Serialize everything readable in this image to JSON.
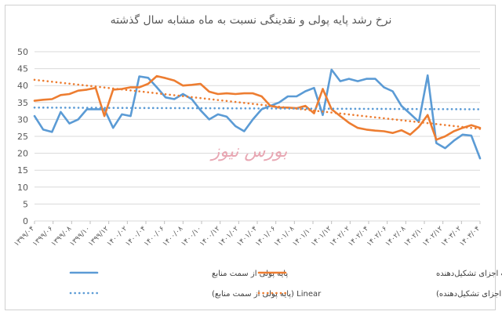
{
  "chart_data": {
    "type": "line",
    "title": "نرخ رشد پایه پولی و نقدینگی نسبت به ماه مشابه سال گذشته",
    "ylim": [
      0,
      50
    ],
    "yticks": [
      0,
      5,
      10,
      15,
      20,
      25,
      30,
      35,
      40,
      45,
      50
    ],
    "grid": true,
    "legend_position": "bottom",
    "x_tick_labels": [
      "۱۳۹۹/۰۴",
      "۱۳۹۹/۰۶",
      "۱۳۹۹/۰۸",
      "۱۳۹۹/۱۰",
      "۱۳۹۹/۱۲",
      "۱۴۰۰/۰۲",
      "۱۴۰۰/۰۴",
      "۱۴۰۰/۰۶",
      "۱۴۰۰/۰۸",
      "۱۴۰۰/۱۰",
      "۱۴۰۰/۱۲",
      "۱۴۰۱/۰۲",
      "۱۴۰۱/۰۴",
      "۱۴۰۱/۰۶",
      "۱۴۰۱/۰۸",
      "۱۴۰۱/۱۰",
      "۱۴۰۱/۱۲",
      "۱۴۰۲/۰۲",
      "۱۴۰۲/۰۴",
      "۱۴۰۲/۰۶",
      "۱۴۰۲/۰۸",
      "۱۴۰۲/۱۰",
      "۱۴۰۲/۱۲",
      "۱۴۰۳/۰۲",
      "۱۴۰۳/۰۴"
    ],
    "series": [
      {
        "name": "پایه پولی از سمت منابع",
        "color": "#5b9bd5",
        "style": "solid",
        "values": [
          31,
          27,
          26.3,
          32.2,
          28.8,
          30,
          33,
          33,
          33,
          27.5,
          31.5,
          31,
          42.7,
          42.3,
          39.5,
          36.5,
          36,
          37.5,
          36,
          32.7,
          30,
          31.5,
          30.8,
          28,
          26.5,
          30,
          33,
          34,
          35,
          36.8,
          36.8,
          38.3,
          39.3,
          31.3,
          44.7,
          41.3,
          42,
          41.3,
          42,
          42,
          39.5,
          38.3,
          34,
          31.7,
          29.3,
          43,
          23,
          21.5,
          23.7,
          25.5,
          25.2,
          18.5
        ]
      },
      {
        "name": "نقدینگی برحسب اجزای تشکیل‌دهنده",
        "color": "#ed7d31",
        "style": "solid",
        "values": [
          35.5,
          35.8,
          36,
          37.2,
          37.5,
          38.5,
          38.8,
          39.3,
          31,
          38.8,
          39,
          39.5,
          39.5,
          40.5,
          42.8,
          42.2,
          41.5,
          40,
          40.2,
          40.5,
          38.2,
          37.5,
          37.7,
          37.5,
          37.7,
          37.7,
          36.8,
          34,
          33.5,
          33.5,
          33.3,
          34,
          31.8,
          39,
          33,
          31,
          29,
          27.5,
          27,
          26.7,
          26.5,
          26,
          26.8,
          25.5,
          27.8,
          31.3,
          24,
          25,
          26.5,
          27.5,
          28.3,
          27.5
        ]
      },
      {
        "name": "Linear (پایه پولی از سمت منابع)",
        "color": "#5b9bd5",
        "style": "dotted",
        "trend": [
          33.5,
          33.0
        ]
      },
      {
        "name": "Linear (نقدینگی برحسب اجزای تشکیل‌دهنده)",
        "color": "#ed7d31",
        "style": "dotted",
        "trend": [
          41.7,
          27.2
        ]
      }
    ],
    "annotation": "بورس نیوز"
  },
  "legend": {
    "items": [
      {
        "label": "پایه پولی از سمت منابع",
        "color": "#5b9bd5",
        "style": "solid"
      },
      {
        "label": "نقدینگی برحسب اجزای تشکیل‌دهنده",
        "color": "#ed7d31",
        "style": "solid"
      },
      {
        "label": "Linear (پایه پولی از سمت منابع)",
        "color": "#5b9bd5",
        "style": "dotted"
      },
      {
        "label": "Linear (نقدینگی برحسب اجزای تشکیل‌دهنده)",
        "color": "#ed7d31",
        "style": "dotted"
      }
    ]
  }
}
